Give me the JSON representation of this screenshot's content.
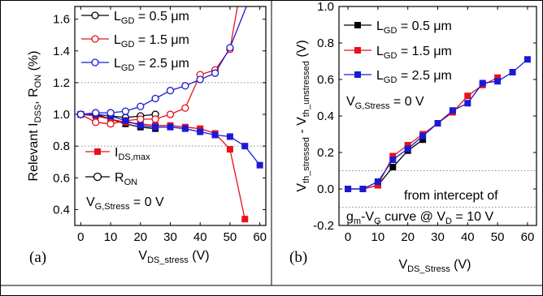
{
  "chart_data": [
    {
      "panel": "a",
      "panel_label": "(a)",
      "type": "line",
      "ylabel": {
        "main": "Relevant I",
        "sub1": "DSS",
        "mid": ", R",
        "sub2": "ON",
        "tail": " (%)"
      },
      "xlabel": {
        "main": "V",
        "sub": "DS_stress",
        "tail": " (V)"
      },
      "xlim": [
        -2,
        62
      ],
      "ylim": [
        0.3,
        1.68
      ],
      "xticks": [
        "0",
        "10",
        "20",
        "30",
        "40",
        "50",
        "60"
      ],
      "yticks": [
        "0.4",
        "0.6",
        "0.8",
        "1.0",
        "1.2",
        "1.4",
        "1.6"
      ],
      "reference_lines": [
        0.8,
        1.2
      ],
      "legend_top": [
        {
          "main": "L",
          "sub": "GD",
          "tail": " = 0.5 μm",
          "color": "#000000"
        },
        {
          "main": "L",
          "sub": "GD",
          "tail": " = 1.5 μm",
          "color": "#e8101a"
        },
        {
          "main": "L",
          "sub": "GD",
          "tail": " = 2.5 μm",
          "color": "#1a1ad6"
        }
      ],
      "legend_bottom": [
        {
          "main": "I",
          "sub": "DS,max",
          "tail": "",
          "marker": "square-filled"
        },
        {
          "main": "R",
          "sub": "ON",
          "tail": "",
          "marker": "circle-open"
        }
      ],
      "condition": {
        "main": "V",
        "sub": "G,Stress",
        "tail": " = 0 V"
      },
      "series": [
        {
          "color": "#000000",
          "marker": "square",
          "x": [
            0,
            5,
            10,
            15,
            20,
            25
          ],
          "y": [
            1.0,
            1.0,
            0.97,
            0.94,
            0.92,
            0.91
          ]
        },
        {
          "color": "#000000",
          "marker": "circle",
          "x": [
            0,
            5,
            10,
            15,
            20,
            25
          ],
          "y": [
            1.0,
            1.0,
            0.99,
            0.98,
            0.99,
            1.0
          ]
        },
        {
          "color": "#e8101a",
          "marker": "square",
          "x": [
            0,
            5,
            10,
            15,
            20,
            25,
            30,
            35,
            40,
            45,
            50,
            55
          ],
          "y": [
            1.0,
            0.99,
            0.97,
            0.95,
            0.94,
            0.93,
            0.93,
            0.92,
            0.91,
            0.88,
            0.78,
            0.34
          ]
        },
        {
          "color": "#e8101a",
          "marker": "circle",
          "x": [
            0,
            5,
            10,
            15,
            20,
            25,
            30,
            35,
            40,
            45,
            50,
            52.5
          ],
          "y": [
            1.0,
            0.95,
            0.94,
            0.96,
            0.97,
            0.97,
            1.0,
            1.04,
            1.25,
            1.28,
            1.41,
            1.68
          ]
        },
        {
          "color": "#1a1ad6",
          "marker": "square",
          "x": [
            0,
            5,
            10,
            15,
            20,
            25,
            30,
            35,
            40,
            45,
            50,
            55,
            60
          ],
          "y": [
            1.0,
            1.0,
            0.99,
            0.96,
            0.93,
            0.92,
            0.92,
            0.91,
            0.89,
            0.87,
            0.86,
            0.8,
            0.68
          ]
        },
        {
          "color": "#1a1ad6",
          "marker": "circle",
          "x": [
            0,
            5,
            10,
            15,
            20,
            25,
            30,
            35,
            40,
            45,
            50,
            55.5
          ],
          "y": [
            1.0,
            1.01,
            1.01,
            1.02,
            1.05,
            1.1,
            1.15,
            1.18,
            1.22,
            1.26,
            1.42,
            1.68
          ]
        }
      ]
    },
    {
      "panel": "b",
      "panel_label": "(b)",
      "type": "line",
      "ylabel": {
        "main": "V",
        "sub1": "th_stressed",
        "mid": " - V",
        "sub2": "th_unstressed",
        "tail": " (V)"
      },
      "xlabel": {
        "main": "V",
        "sub": "DS_Stress",
        "tail": " (V)"
      },
      "xlim": [
        -3,
        63
      ],
      "ylim": [
        -0.2,
        1.0
      ],
      "xticks": [
        "0",
        "10",
        "20",
        "30",
        "40",
        "50",
        "60"
      ],
      "yticks": [
        "-0.2",
        "0.0",
        "0.2",
        "0.4",
        "0.6",
        "0.8",
        "1.0"
      ],
      "reference_lines": [
        -0.1,
        0.1
      ],
      "legend": [
        {
          "main": "L",
          "sub": "GD",
          "tail": " = 0.5 μm",
          "color": "#000000"
        },
        {
          "main": "L",
          "sub": "GD",
          "tail": " = 1.5 μm",
          "color": "#e8101a"
        },
        {
          "main": "L",
          "sub": "GD",
          "tail": " = 2.5 μm",
          "color": "#1a1ad6"
        }
      ],
      "condition": {
        "main": "V",
        "sub": "G,Stress",
        "tail": " = 0 V"
      },
      "annotation_line1": "from intercept of",
      "annotation_line2": {
        "a": "g",
        "a_sub": "m",
        "b": "-V",
        "b_sub": "G",
        "c": " curve @ V",
        "c_sub": "D",
        "d": " = 10 V"
      },
      "series": [
        {
          "color": "#000000",
          "marker": "square",
          "x": [
            0,
            5,
            10,
            15,
            20,
            25
          ],
          "y": [
            0.0,
            0.0,
            0.02,
            0.12,
            0.21,
            0.27
          ]
        },
        {
          "color": "#e8101a",
          "marker": "square",
          "x": [
            0,
            5,
            10,
            15,
            20,
            25,
            30,
            35,
            40,
            45,
            50
          ],
          "y": [
            0.0,
            0.0,
            0.02,
            0.18,
            0.24,
            0.3,
            0.36,
            0.42,
            0.51,
            0.57,
            0.61
          ]
        },
        {
          "color": "#1a1ad6",
          "marker": "square",
          "x": [
            0,
            5,
            10,
            15,
            20,
            25,
            30,
            35,
            40,
            45,
            50,
            55,
            60
          ],
          "y": [
            0.0,
            0.0,
            0.04,
            0.16,
            0.22,
            0.29,
            0.36,
            0.43,
            0.47,
            0.58,
            0.59,
            0.64,
            0.71
          ]
        }
      ]
    }
  ]
}
